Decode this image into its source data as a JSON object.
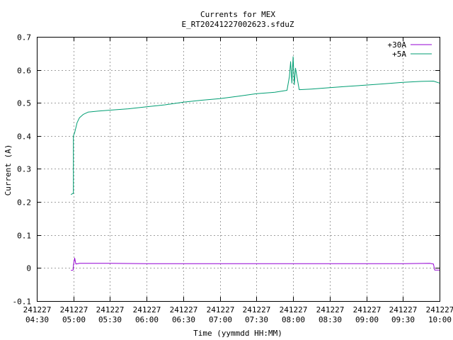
{
  "chart_data": {
    "type": "line",
    "title": "Currents for MEX",
    "subtitle": "E_RT20241227002623.sfduZ",
    "xlabel": "Time (yymmdd HH:MM)",
    "ylabel": "Current (A)",
    "xlim": [
      "241227 04:30",
      "241227 10:00"
    ],
    "ylim": [
      -0.1,
      0.7
    ],
    "grid": true,
    "legend_position": "top-right",
    "x_ticks": [
      {
        "date": "241227",
        "time": "04:30"
      },
      {
        "date": "241227",
        "time": "05:00"
      },
      {
        "date": "241227",
        "time": "05:30"
      },
      {
        "date": "241227",
        "time": "06:00"
      },
      {
        "date": "241227",
        "time": "06:30"
      },
      {
        "date": "241227",
        "time": "07:00"
      },
      {
        "date": "241227",
        "time": "07:30"
      },
      {
        "date": "241227",
        "time": "08:00"
      },
      {
        "date": "241227",
        "time": "08:30"
      },
      {
        "date": "241227",
        "time": "09:00"
      },
      {
        "date": "241227",
        "time": "09:30"
      },
      {
        "date": "241227",
        "time": "10:00"
      }
    ],
    "y_ticks": [
      "-0.1",
      "0",
      "0.1",
      "0.2",
      "0.3",
      "0.4",
      "0.5",
      "0.6",
      "0.7"
    ],
    "series": [
      {
        "name": "+30A",
        "color": "#9400d3",
        "points": [
          [
            "04:58",
            -0.007
          ],
          [
            "04:59",
            -0.007
          ],
          [
            "05:00",
            -0.005
          ],
          [
            "05:00",
            0.008
          ],
          [
            "05:01",
            0.03
          ],
          [
            "05:02",
            0.012
          ],
          [
            "05:05",
            0.014
          ],
          [
            "05:30",
            0.014
          ],
          [
            "06:00",
            0.013
          ],
          [
            "06:30",
            0.013
          ],
          [
            "07:00",
            0.013
          ],
          [
            "07:30",
            0.013
          ],
          [
            "08:00",
            0.013
          ],
          [
            "08:30",
            0.013
          ],
          [
            "09:00",
            0.013
          ],
          [
            "09:30",
            0.013
          ],
          [
            "09:52",
            0.014
          ],
          [
            "09:55",
            0.012
          ],
          [
            "09:56",
            -0.006
          ],
          [
            "10:00",
            -0.006
          ]
        ]
      },
      {
        "name": "+5A",
        "color": "#009e73",
        "points": [
          [
            "04:58",
            0.222
          ],
          [
            "04:59",
            0.225
          ],
          [
            "05:00",
            0.226
          ],
          [
            "05:00",
            0.4
          ],
          [
            "05:01",
            0.41
          ],
          [
            "05:03",
            0.44
          ],
          [
            "05:05",
            0.455
          ],
          [
            "05:08",
            0.465
          ],
          [
            "05:12",
            0.472
          ],
          [
            "05:20",
            0.475
          ],
          [
            "05:30",
            0.478
          ],
          [
            "05:45",
            0.482
          ],
          [
            "06:00",
            0.488
          ],
          [
            "06:15",
            0.494
          ],
          [
            "06:30",
            0.502
          ],
          [
            "06:45",
            0.508
          ],
          [
            "07:00",
            0.513
          ],
          [
            "07:15",
            0.52
          ],
          [
            "07:30",
            0.528
          ],
          [
            "07:45",
            0.532
          ],
          [
            "07:55",
            0.538
          ],
          [
            "07:57",
            0.58
          ],
          [
            "07:58",
            0.625
          ],
          [
            "07:59",
            0.56
          ],
          [
            "08:00",
            0.64
          ],
          [
            "08:01",
            0.555
          ],
          [
            "08:02",
            0.605
          ],
          [
            "08:05",
            0.54
          ],
          [
            "08:15",
            0.542
          ],
          [
            "08:30",
            0.546
          ],
          [
            "08:45",
            0.55
          ],
          [
            "09:00",
            0.554
          ],
          [
            "09:15",
            0.558
          ],
          [
            "09:30",
            0.562
          ],
          [
            "09:45",
            0.565
          ],
          [
            "09:55",
            0.566
          ],
          [
            "10:00",
            0.56
          ]
        ]
      }
    ]
  }
}
